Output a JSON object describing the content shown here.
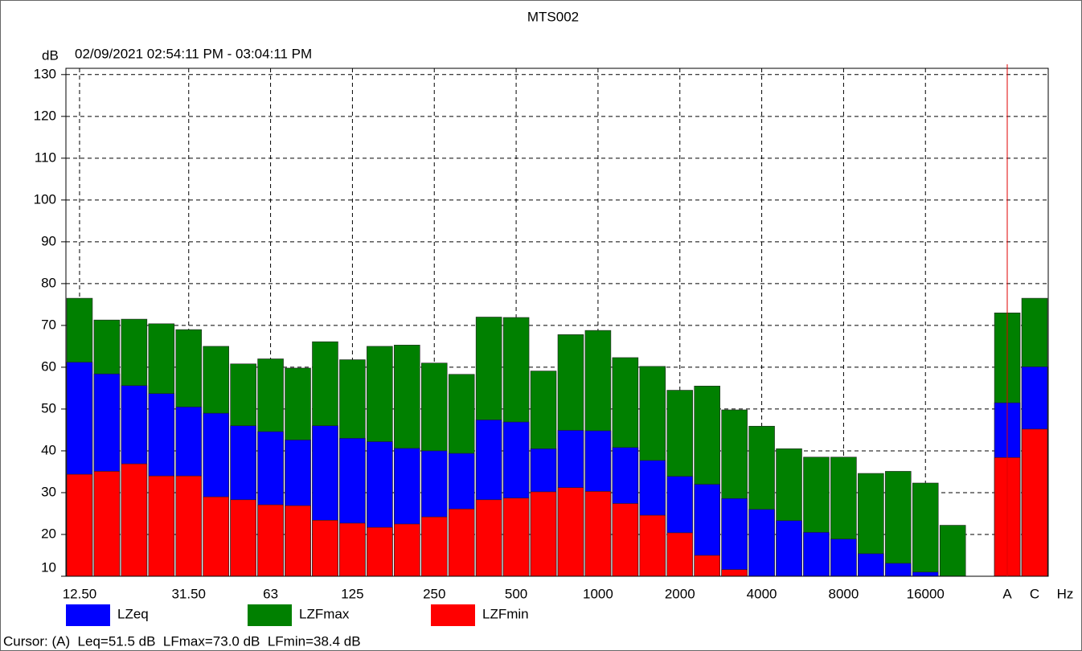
{
  "chart_data": {
    "type": "bar",
    "title": "MTS002",
    "subtitle": "02/09/2021 02:54:11 PM - 03:04:11 PM",
    "y_label": "dB",
    "x_label": "Hz",
    "categories": [
      "12.50",
      null,
      null,
      null,
      "31.50",
      null,
      null,
      "63",
      null,
      null,
      "125",
      null,
      null,
      "250",
      null,
      null,
      "500",
      null,
      null,
      "1000",
      null,
      null,
      "2000",
      null,
      null,
      "4000",
      null,
      null,
      "8000",
      null,
      null,
      "16000",
      null,
      null,
      "A",
      "C"
    ],
    "series": [
      {
        "name": "LZeq",
        "color": "#0000ff",
        "values": [
          61.2,
          58.4,
          55.6,
          53.7,
          50.5,
          49.0,
          46.0,
          44.6,
          42.6,
          46.0,
          43.0,
          42.2,
          40.6,
          40.0,
          39.4,
          47.4,
          46.9,
          40.5,
          44.9,
          44.8,
          40.8,
          37.7,
          33.9,
          32.0,
          28.6,
          26.0,
          23.3,
          20.5,
          18.9,
          15.4,
          13.1,
          11.0,
          null,
          null,
          51.5,
          60.1
        ]
      },
      {
        "name": "LZFmax",
        "color": "#008000",
        "values": [
          76.5,
          71.3,
          71.5,
          70.4,
          69.0,
          65.0,
          60.8,
          62.0,
          59.8,
          66.1,
          61.8,
          65.0,
          65.3,
          61.0,
          58.3,
          72.0,
          71.9,
          59.1,
          67.8,
          68.8,
          62.3,
          60.2,
          54.5,
          55.5,
          49.8,
          45.9,
          40.5,
          38.5,
          38.5,
          34.6,
          35.1,
          32.3,
          22.2,
          null,
          73.0,
          76.5
        ]
      },
      {
        "name": "LZFmin",
        "color": "#ff0000",
        "values": [
          34.4,
          35.1,
          36.9,
          34.0,
          34.0,
          29.0,
          28.3,
          27.1,
          26.9,
          23.4,
          22.7,
          21.7,
          22.5,
          24.2,
          26.1,
          28.3,
          28.7,
          30.2,
          31.2,
          30.3,
          27.4,
          24.6,
          20.4,
          15.0,
          11.6,
          null,
          null,
          null,
          null,
          null,
          null,
          null,
          null,
          null,
          38.4,
          45.2
        ]
      }
    ],
    "ylim": [
      10,
      131.5
    ],
    "yticks": [
      10,
      20,
      30,
      40,
      50,
      60,
      70,
      80,
      90,
      100,
      110,
      120,
      130
    ],
    "grid": true,
    "cursor_text": "Cursor: (A)  Leq=51.5 dB  LFmax=73.0 dB  LFmin=38.4 dB"
  }
}
